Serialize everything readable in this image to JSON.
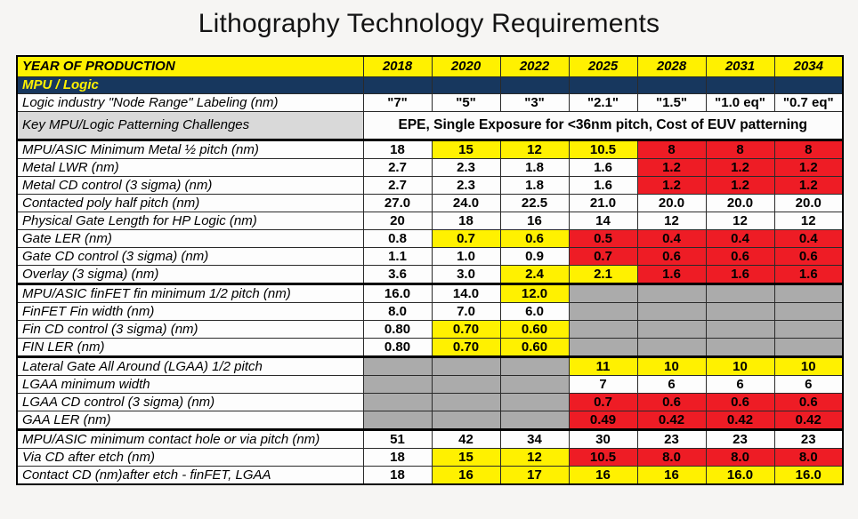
{
  "title": "Lithography Technology Requirements",
  "colors": {
    "yellow": "#FFF100",
    "red": "#EE1C25",
    "navy": "#17375E",
    "grey": "#ABABAB",
    "labelgrey": "#D9D9D9",
    "white": "#FDFDFD",
    "pagebg": "#F6F5F3"
  },
  "table": {
    "header": {
      "label": "YEAR OF PRODUCTION",
      "years": [
        "2018",
        "2020",
        "2022",
        "2025",
        "2028",
        "2031",
        "2034"
      ]
    },
    "rows": [
      {
        "type": "section",
        "label": "MPU / Logic"
      },
      {
        "type": "data",
        "label": "Logic industry \"Node Range\" Labeling (nm)",
        "cells": [
          {
            "v": "\"7\"",
            "c": "w"
          },
          {
            "v": "\"5\"",
            "c": "w"
          },
          {
            "v": "\"3\"",
            "c": "w"
          },
          {
            "v": "\"2.1\"",
            "c": "w"
          },
          {
            "v": "\"1.5\"",
            "c": "w"
          },
          {
            "v": "\"1.0 eq\"",
            "c": "w"
          },
          {
            "v": "\"0.7 eq\"",
            "c": "w"
          }
        ]
      },
      {
        "type": "merged",
        "label": "Key MPU/Logic Patterning Challenges",
        "label_grey": true,
        "value": "EPE, Single Exposure for <36nm pitch, Cost of EUV patterning"
      },
      {
        "type": "data",
        "label": "MPU/ASIC Minimum Metal ½ pitch (nm)",
        "thick_top": true,
        "cells": [
          {
            "v": "18",
            "c": "w"
          },
          {
            "v": "15",
            "c": "y"
          },
          {
            "v": "12",
            "c": "y"
          },
          {
            "v": "10.5",
            "c": "y"
          },
          {
            "v": "8",
            "c": "r"
          },
          {
            "v": "8",
            "c": "r"
          },
          {
            "v": "8",
            "c": "r"
          }
        ]
      },
      {
        "type": "data",
        "label": "Metal LWR (nm)",
        "cells": [
          {
            "v": "2.7",
            "c": "w"
          },
          {
            "v": "2.3",
            "c": "w"
          },
          {
            "v": "1.8",
            "c": "w"
          },
          {
            "v": "1.6",
            "c": "w"
          },
          {
            "v": "1.2",
            "c": "r"
          },
          {
            "v": "1.2",
            "c": "r"
          },
          {
            "v": "1.2",
            "c": "r"
          }
        ]
      },
      {
        "type": "data",
        "label": "Metal CD control (3 sigma) (nm)",
        "cells": [
          {
            "v": "2.7",
            "c": "w"
          },
          {
            "v": "2.3",
            "c": "w"
          },
          {
            "v": "1.8",
            "c": "w"
          },
          {
            "v": "1.6",
            "c": "w"
          },
          {
            "v": "1.2",
            "c": "r"
          },
          {
            "v": "1.2",
            "c": "r"
          },
          {
            "v": "1.2",
            "c": "r"
          }
        ]
      },
      {
        "type": "data",
        "label": "Contacted poly half pitch (nm)",
        "cells": [
          {
            "v": "27.0",
            "c": "w"
          },
          {
            "v": "24.0",
            "c": "w"
          },
          {
            "v": "22.5",
            "c": "w"
          },
          {
            "v": "21.0",
            "c": "w"
          },
          {
            "v": "20.0",
            "c": "w"
          },
          {
            "v": "20.0",
            "c": "w"
          },
          {
            "v": "20.0",
            "c": "w"
          }
        ]
      },
      {
        "type": "data",
        "label": "Physical Gate Length for HP Logic (nm)",
        "cells": [
          {
            "v": "20",
            "c": "w"
          },
          {
            "v": "18",
            "c": "w"
          },
          {
            "v": "16",
            "c": "w"
          },
          {
            "v": "14",
            "c": "w"
          },
          {
            "v": "12",
            "c": "w"
          },
          {
            "v": "12",
            "c": "w"
          },
          {
            "v": "12",
            "c": "w"
          }
        ]
      },
      {
        "type": "data",
        "label": "Gate LER (nm)",
        "cells": [
          {
            "v": "0.8",
            "c": "w"
          },
          {
            "v": "0.7",
            "c": "y"
          },
          {
            "v": "0.6",
            "c": "y"
          },
          {
            "v": "0.5",
            "c": "r"
          },
          {
            "v": "0.4",
            "c": "r"
          },
          {
            "v": "0.4",
            "c": "r"
          },
          {
            "v": "0.4",
            "c": "r"
          }
        ]
      },
      {
        "type": "data",
        "label": "Gate CD control (3 sigma) (nm)",
        "cells": [
          {
            "v": "1.1",
            "c": "w"
          },
          {
            "v": "1.0",
            "c": "w"
          },
          {
            "v": "0.9",
            "c": "w"
          },
          {
            "v": "0.7",
            "c": "r"
          },
          {
            "v": "0.6",
            "c": "r"
          },
          {
            "v": "0.6",
            "c": "r"
          },
          {
            "v": "0.6",
            "c": "r"
          }
        ]
      },
      {
        "type": "data",
        "label": "Overlay (3 sigma) (nm)",
        "cells": [
          {
            "v": "3.6",
            "c": "w"
          },
          {
            "v": "3.0",
            "c": "w"
          },
          {
            "v": "2.4",
            "c": "y"
          },
          {
            "v": "2.1",
            "c": "y"
          },
          {
            "v": "1.6",
            "c": "r"
          },
          {
            "v": "1.6",
            "c": "r"
          },
          {
            "v": "1.6",
            "c": "r"
          }
        ]
      },
      {
        "type": "data",
        "label": "MPU/ASIC finFET fin minimum 1/2 pitch (nm)",
        "thick_top": true,
        "cells": [
          {
            "v": "16.0",
            "c": "w"
          },
          {
            "v": "14.0",
            "c": "w"
          },
          {
            "v": "12.0",
            "c": "y"
          },
          {
            "v": "",
            "c": "g"
          },
          {
            "v": "",
            "c": "g"
          },
          {
            "v": "",
            "c": "g"
          },
          {
            "v": "",
            "c": "g"
          }
        ]
      },
      {
        "type": "data",
        "label": "FinFET Fin width (nm)",
        "cells": [
          {
            "v": "8.0",
            "c": "w"
          },
          {
            "v": "7.0",
            "c": "w"
          },
          {
            "v": "6.0",
            "c": "w"
          },
          {
            "v": "",
            "c": "g"
          },
          {
            "v": "",
            "c": "g"
          },
          {
            "v": "",
            "c": "g"
          },
          {
            "v": "",
            "c": "g"
          }
        ]
      },
      {
        "type": "data",
        "label": "Fin CD control (3 sigma) (nm)",
        "cells": [
          {
            "v": "0.80",
            "c": "w"
          },
          {
            "v": "0.70",
            "c": "y"
          },
          {
            "v": "0.60",
            "c": "y"
          },
          {
            "v": "",
            "c": "g"
          },
          {
            "v": "",
            "c": "g"
          },
          {
            "v": "",
            "c": "g"
          },
          {
            "v": "",
            "c": "g"
          }
        ]
      },
      {
        "type": "data",
        "label": "FIN LER (nm)",
        "cells": [
          {
            "v": "0.80",
            "c": "w"
          },
          {
            "v": "0.70",
            "c": "y"
          },
          {
            "v": "0.60",
            "c": "y"
          },
          {
            "v": "",
            "c": "g"
          },
          {
            "v": "",
            "c": "g"
          },
          {
            "v": "",
            "c": "g"
          },
          {
            "v": "",
            "c": "g"
          }
        ]
      },
      {
        "type": "data",
        "label": "Lateral Gate All Around (LGAA) 1/2 pitch",
        "thick_top": true,
        "cells": [
          {
            "v": "",
            "c": "g"
          },
          {
            "v": "",
            "c": "g"
          },
          {
            "v": "",
            "c": "g"
          },
          {
            "v": "11",
            "c": "y"
          },
          {
            "v": "10",
            "c": "y"
          },
          {
            "v": "10",
            "c": "y"
          },
          {
            "v": "10",
            "c": "y"
          }
        ]
      },
      {
        "type": "data",
        "label": "LGAA minimum width",
        "cells": [
          {
            "v": "",
            "c": "g"
          },
          {
            "v": "",
            "c": "g"
          },
          {
            "v": "",
            "c": "g"
          },
          {
            "v": "7",
            "c": "w"
          },
          {
            "v": "6",
            "c": "w"
          },
          {
            "v": "6",
            "c": "w"
          },
          {
            "v": "6",
            "c": "w"
          }
        ]
      },
      {
        "type": "data",
        "label": "LGAA CD control (3 sigma) (nm)",
        "cells": [
          {
            "v": "",
            "c": "g"
          },
          {
            "v": "",
            "c": "g"
          },
          {
            "v": "",
            "c": "g"
          },
          {
            "v": "0.7",
            "c": "r"
          },
          {
            "v": "0.6",
            "c": "r"
          },
          {
            "v": "0.6",
            "c": "r"
          },
          {
            "v": "0.6",
            "c": "r"
          }
        ]
      },
      {
        "type": "data",
        "label": "GAA LER (nm)",
        "cells": [
          {
            "v": "",
            "c": "g"
          },
          {
            "v": "",
            "c": "g"
          },
          {
            "v": "",
            "c": "g"
          },
          {
            "v": "0.49",
            "c": "r"
          },
          {
            "v": "0.42",
            "c": "r"
          },
          {
            "v": "0.42",
            "c": "r"
          },
          {
            "v": "0.42",
            "c": "r"
          }
        ]
      },
      {
        "type": "data",
        "label": "MPU/ASIC minimum contact hole or via pitch (nm)",
        "thick_top": true,
        "cells": [
          {
            "v": "51",
            "c": "w"
          },
          {
            "v": "42",
            "c": "w"
          },
          {
            "v": "34",
            "c": "w"
          },
          {
            "v": "30",
            "c": "w"
          },
          {
            "v": "23",
            "c": "w"
          },
          {
            "v": "23",
            "c": "w"
          },
          {
            "v": "23",
            "c": "w"
          }
        ]
      },
      {
        "type": "data",
        "label": "Via CD after etch (nm)",
        "cells": [
          {
            "v": "18",
            "c": "w"
          },
          {
            "v": "15",
            "c": "y"
          },
          {
            "v": "12",
            "c": "y"
          },
          {
            "v": "10.5",
            "c": "r"
          },
          {
            "v": "8.0",
            "c": "r"
          },
          {
            "v": "8.0",
            "c": "r"
          },
          {
            "v": "8.0",
            "c": "r"
          }
        ]
      },
      {
        "type": "data",
        "label": "Contact CD (nm)after etch - finFET, LGAA",
        "cells": [
          {
            "v": "18",
            "c": "w"
          },
          {
            "v": "16",
            "c": "y"
          },
          {
            "v": "17",
            "c": "y"
          },
          {
            "v": "16",
            "c": "y"
          },
          {
            "v": "16",
            "c": "y"
          },
          {
            "v": "16.0",
            "c": "y"
          },
          {
            "v": "16.0",
            "c": "y"
          }
        ]
      }
    ]
  }
}
